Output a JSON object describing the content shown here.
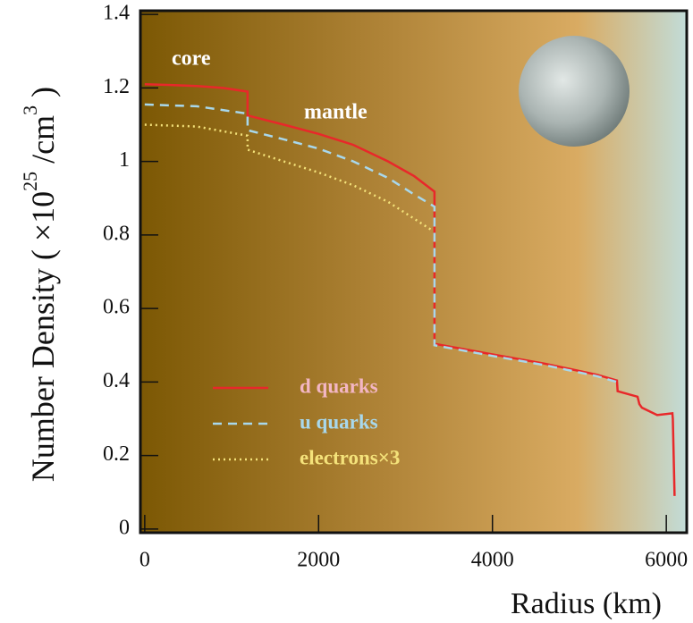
{
  "chart_data": {
    "type": "line",
    "xlabel": "Radius (km)",
    "ylabel": [
      "Number Density ( ×10",
      "25",
      " /cm",
      "3",
      " )"
    ],
    "annotations": [
      "core",
      "mantle"
    ],
    "xlim": [
      -50,
      6235
    ],
    "ylim": [
      -0.01,
      1.41
    ],
    "xticks": [
      0,
      2000,
      4000,
      6000
    ],
    "yticks": [
      0,
      0.2,
      0.4,
      0.6,
      0.8,
      1,
      1.2,
      1.4
    ],
    "legend": "lower left",
    "series": [
      {
        "name": "d quarks",
        "color": "#e8282a",
        "style": "solid",
        "x": [
          0,
          300,
          600,
          900,
          1183,
          1183,
          1600,
          2000,
          2400,
          2800,
          3100,
          3333,
          3333,
          4000,
          4600,
          5200,
          5432,
          5440,
          5669,
          5690,
          5720,
          5895,
          6070,
          6075,
          6095
        ],
        "values": [
          1.21,
          1.208,
          1.205,
          1.2,
          1.19,
          1.125,
          1.1,
          1.075,
          1.045,
          1.0,
          0.96,
          0.918,
          0.504,
          0.475,
          0.45,
          0.42,
          0.404,
          0.375,
          0.36,
          0.34,
          0.33,
          0.31,
          0.315,
          0.3,
          0.09
        ]
      },
      {
        "name": "u quarks",
        "color": "#a8d8ec",
        "style": "dashed",
        "x": [
          0,
          600,
          1183,
          1183,
          1600,
          2000,
          2400,
          2800,
          3100,
          3333,
          3333,
          4000,
          4600,
          5200,
          5432
        ],
        "values": [
          1.155,
          1.15,
          1.13,
          1.085,
          1.06,
          1.035,
          1.0,
          0.955,
          0.91,
          0.877,
          0.5,
          0.471,
          0.446,
          0.416,
          0.4
        ]
      },
      {
        "name": "electrons×3",
        "color": "#f4e27a",
        "style": "dotted",
        "x": [
          0,
          600,
          1183,
          1183,
          1600,
          2000,
          2400,
          2800,
          3290
        ],
        "values": [
          1.1,
          1.095,
          1.07,
          1.032,
          1.0,
          0.97,
          0.935,
          0.89,
          0.815
        ]
      }
    ]
  }
}
